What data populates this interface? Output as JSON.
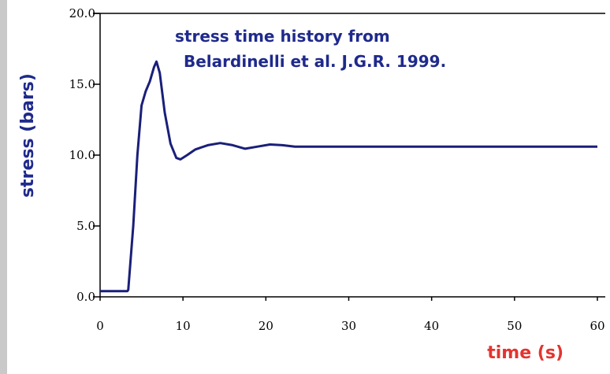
{
  "chart_data": {
    "type": "line",
    "annotation": [
      "stress time history from",
      "Belardinelli et al. J.G.R. 1999."
    ],
    "y_label": "stress (bars)",
    "x_label": "time (s)",
    "xlim": [
      0,
      60
    ],
    "xticks": [
      0,
      10,
      20,
      30,
      40,
      50,
      60
    ],
    "ylim": [
      0,
      20
    ],
    "yticks": [
      {
        "value": 0,
        "label": "0.0"
      },
      {
        "value": 5,
        "label": "5.0"
      },
      {
        "value": 10,
        "label": "10.0"
      },
      {
        "value": 15,
        "label": "15.0"
      },
      {
        "value": 20,
        "label": "20.0"
      }
    ],
    "grid": false,
    "series": [
      {
        "color": "#1a1f7a",
        "x": [
          0,
          3.3,
          3.4,
          4,
          4.5,
          5,
          5.5,
          6,
          6.5,
          6.8,
          7.2,
          7.8,
          8.5,
          9.2,
          9.7,
          10.5,
          11.5,
          13,
          14.5,
          16,
          17.5,
          19,
          20.5,
          22,
          23.5,
          30,
          40,
          50,
          60
        ],
        "values": [
          0.4,
          0.4,
          0.5,
          5,
          10,
          13.5,
          14.5,
          15.2,
          16.2,
          16.6,
          15.8,
          13,
          10.8,
          9.8,
          9.7,
          10.0,
          10.4,
          10.7,
          10.85,
          10.7,
          10.45,
          10.6,
          10.75,
          10.7,
          10.6,
          10.6,
          10.6,
          10.6,
          10.6
        ]
      }
    ]
  }
}
